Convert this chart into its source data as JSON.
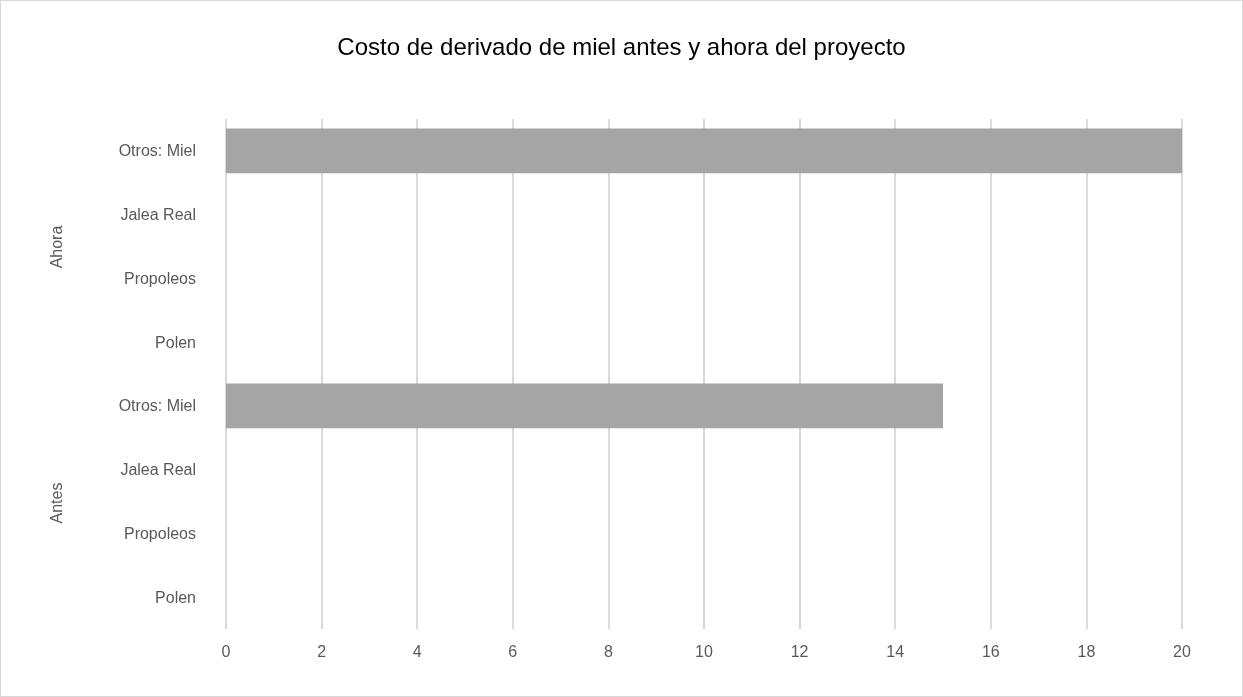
{
  "chart_data": {
    "type": "bar",
    "orientation": "horizontal",
    "title": "Costo de derivado de miel antes y ahora del proyecto",
    "categories": [
      "Otros: Miel",
      "Jalea Real",
      "Propoleos",
      "Polen",
      "Otros: Miel",
      "Jalea Real",
      "Propoleos",
      "Polen"
    ],
    "values": [
      20,
      0,
      0,
      0,
      15,
      0,
      0,
      0
    ],
    "color": "#a5a5a5",
    "xlim": [
      0,
      20
    ],
    "xticks": [
      0,
      2,
      4,
      6,
      8,
      10,
      12,
      14,
      16,
      18,
      20
    ],
    "grid": "x",
    "annotations": [
      "Ahora",
      "Antes"
    ]
  }
}
